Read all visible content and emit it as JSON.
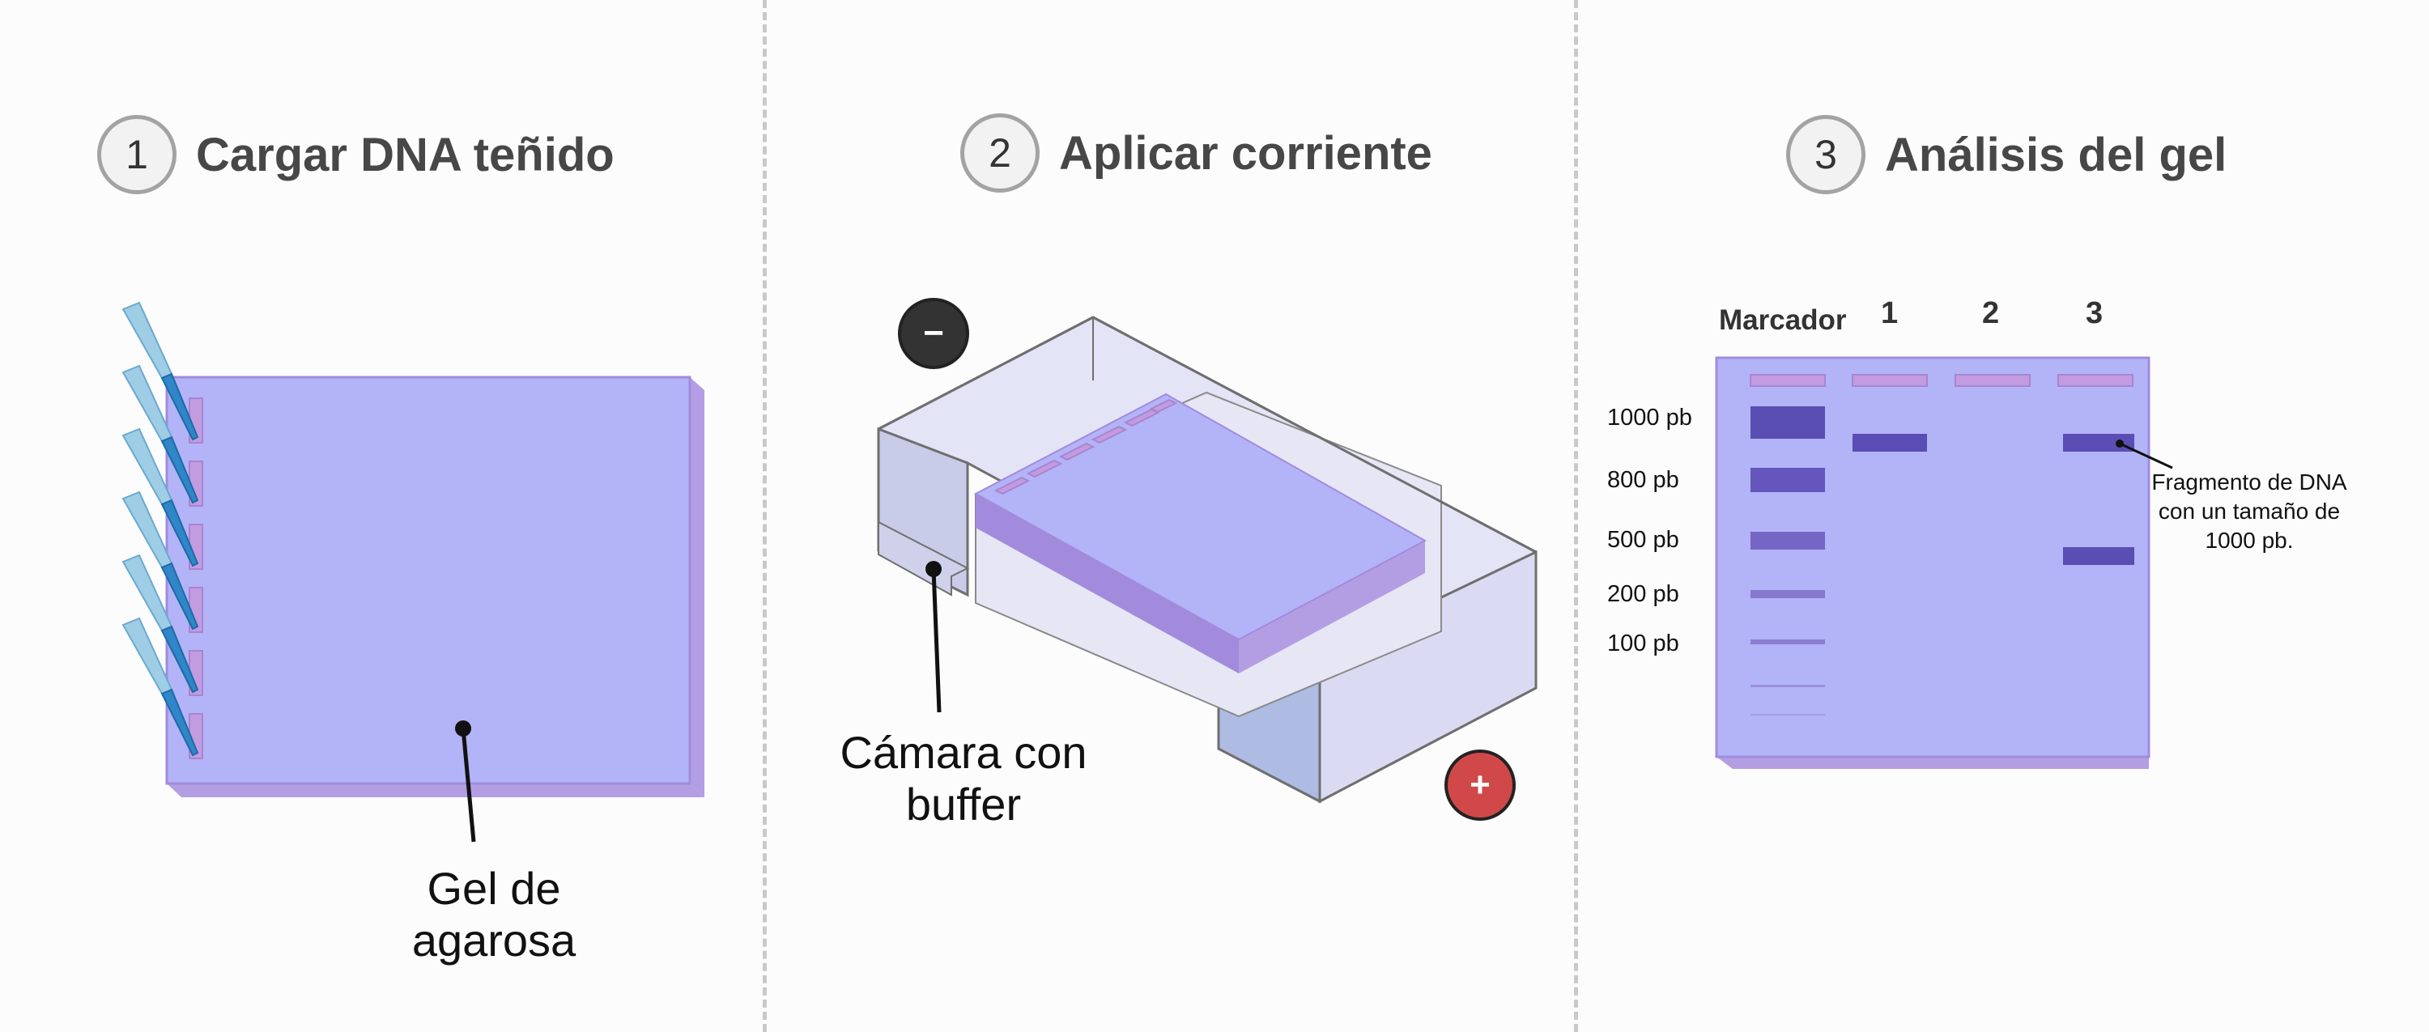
{
  "steps": [
    {
      "number": "1",
      "title": "Cargar DNA teñido"
    },
    {
      "number": "2",
      "title": "Aplicar corriente"
    },
    {
      "number": "3",
      "title": "Análisis del gel"
    }
  ],
  "panel1": {
    "gel_label_line1": "Gel de",
    "gel_label_line2": "agarosa",
    "pipette_count": 6
  },
  "panel2": {
    "negative_symbol": "−",
    "positive_symbol": "+",
    "chamber_label_line1": "Cámara con",
    "chamber_label_line2": "buffer"
  },
  "panel3": {
    "lane_headers": [
      "Marcador",
      "1",
      "2",
      "3"
    ],
    "ladder": [
      {
        "label": "1000 pb",
        "size": 1000
      },
      {
        "label": "800 pb",
        "size": 800
      },
      {
        "label": "500 pb",
        "size": 500
      },
      {
        "label": "200 pb",
        "size": 200
      },
      {
        "label": "100 pb",
        "size": 100
      }
    ],
    "lane_bands": {
      "lane1": [
        "1000 pb"
      ],
      "lane2": [],
      "lane3": [
        "1000 pb",
        "fragmento inferior"
      ]
    },
    "annotation_line1": "Fragmento de DNA",
    "annotation_line2": "con un tamaño de",
    "annotation_line3": "1000 pb."
  },
  "colors": {
    "gel": "#b3b3f8",
    "gel_side": "#b49ee3",
    "well": "#c39be0",
    "band_dark": "#5a4db3",
    "pipette_light": "#9fcde6",
    "pipette_dark": "#2f86c9",
    "negative_terminal": "#333333",
    "positive_terminal": "#d04848",
    "divider": "#c9c9c9"
  }
}
